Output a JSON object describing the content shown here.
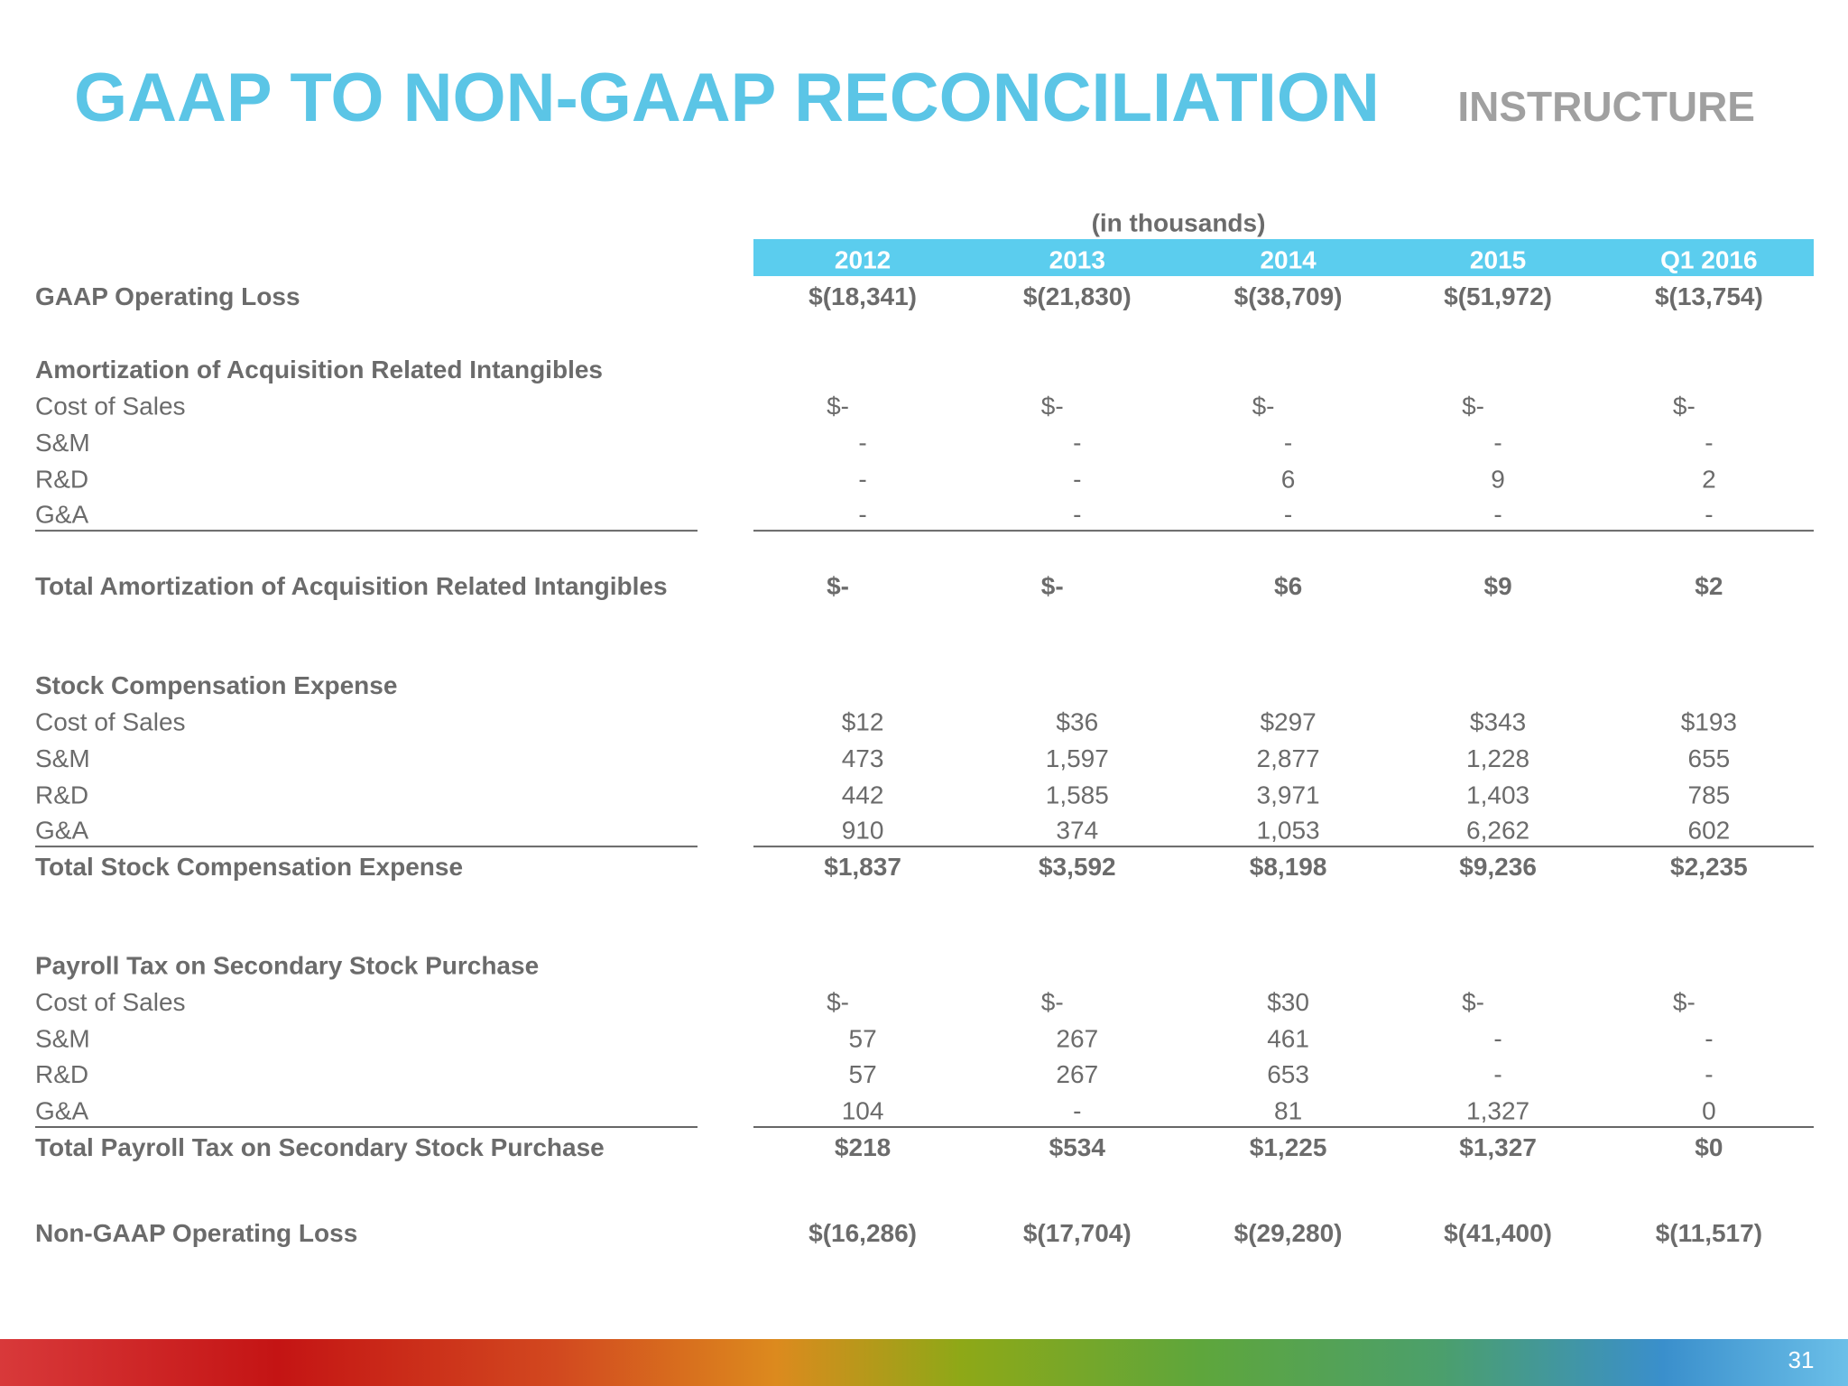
{
  "header": {
    "title": "GAAP TO NON-GAAP RECONCILIATION",
    "logo": "INSTRUCTURE"
  },
  "table": {
    "unit_note": "(in thousands)",
    "columns": [
      "2012",
      "2013",
      "2014",
      "2015",
      "Q1 2016"
    ],
    "rows": [
      {
        "label": "GAAP Operating Loss",
        "values": [
          "$(18,341)",
          "$(21,830)",
          "$(38,709)",
          "$(51,972)",
          "$(13,754)"
        ]
      },
      {
        "label": "Amortization of Acquisition Related Intangibles"
      },
      {
        "label": "Cost of Sales",
        "values": [
          "$-",
          "$-",
          "$-",
          "$-",
          "$-"
        ]
      },
      {
        "label": "S&M",
        "values": [
          "-",
          "-",
          "-",
          "-",
          "-"
        ]
      },
      {
        "label": "R&D",
        "values": [
          "-",
          "-",
          "6",
          "9",
          "2"
        ]
      },
      {
        "label": "G&A",
        "values": [
          "-",
          "-",
          "-",
          "-",
          "-"
        ]
      },
      {
        "label": "Total Amortization of Acquisition Related Intangibles",
        "values": [
          "$-",
          "$-",
          "$6",
          "$9",
          "$2"
        ]
      },
      {
        "label": "Stock Compensation Expense"
      },
      {
        "label": "Cost of Sales",
        "values": [
          "$12",
          "$36",
          "$297",
          "$343",
          "$193"
        ]
      },
      {
        "label": "S&M",
        "values": [
          "473",
          "1,597",
          "2,877",
          "1,228",
          "655"
        ]
      },
      {
        "label": "R&D",
        "values": [
          "442",
          "1,585",
          "3,971",
          "1,403",
          "785"
        ]
      },
      {
        "label": "G&A",
        "values": [
          "910",
          "374",
          "1,053",
          "6,262",
          "602"
        ]
      },
      {
        "label": "Total Stock Compensation Expense",
        "values": [
          "$1,837",
          "$3,592",
          "$8,198",
          "$9,236",
          "$2,235"
        ]
      },
      {
        "label": "Payroll Tax on Secondary Stock Purchase"
      },
      {
        "label": "Cost of Sales",
        "values": [
          "$-",
          "$-",
          "$30",
          "$-",
          "$-"
        ]
      },
      {
        "label": "S&M",
        "values": [
          "57",
          "267",
          "461",
          "-",
          "-"
        ]
      },
      {
        "label": "R&D",
        "values": [
          "57",
          "267",
          "653",
          "-",
          "-"
        ]
      },
      {
        "label": "G&A",
        "values": [
          "104",
          "-",
          "81",
          "1,327",
          "0"
        ]
      },
      {
        "label": "Total Payroll Tax on Secondary Stock Purchase",
        "values": [
          "$218",
          "$534",
          "$1,225",
          "$1,327",
          "$0"
        ]
      },
      {
        "label": "Non-GAAP Operating Loss",
        "values": [
          "$(16,286)",
          "$(17,704)",
          "$(29,280)",
          "$(41,400)",
          "$(11,517)"
        ]
      }
    ]
  },
  "footer": {
    "page_number": "31"
  }
}
